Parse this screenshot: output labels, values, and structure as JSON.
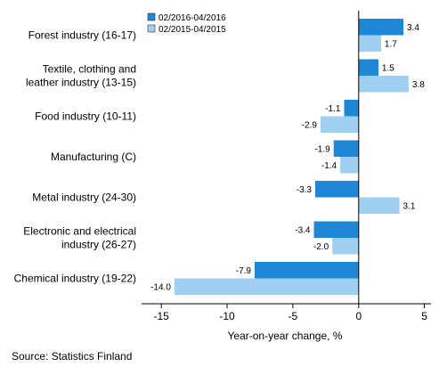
{
  "chart_data": {
    "type": "bar",
    "orientation": "horizontal",
    "categories": [
      [
        "Forest industry (16-17)"
      ],
      [
        "Textile, clothing and",
        "leather industry (13-15)"
      ],
      [
        "Food industry (10-11)"
      ],
      [
        "Manufacturing (C)"
      ],
      [
        "Metal industry (24-30)"
      ],
      [
        "Electronic and electrical",
        "industry (26-27)"
      ],
      [
        "Chemical industry (19-22)"
      ]
    ],
    "series": [
      {
        "name": "02/2016-04/2016",
        "color": "#1f88d6",
        "values": [
          3.4,
          1.5,
          -1.1,
          -1.9,
          -3.3,
          -3.4,
          -7.9
        ],
        "labels": [
          "3.4",
          "1.5",
          "-1.1",
          "-1.9",
          "-3.3",
          "-3.4",
          "-7.9"
        ]
      },
      {
        "name": "02/2015-04/2015",
        "color": "#9fd0f2",
        "values": [
          1.7,
          3.8,
          -2.9,
          -1.4,
          3.1,
          -2.0,
          -14.0
        ],
        "labels": [
          "1.7",
          "3.8",
          "-2.9",
          "-1.4",
          "3.1",
          "-2.0",
          "-14.0"
        ]
      }
    ],
    "xlim": [
      -16.5,
      5.5
    ],
    "xticks": [
      -15,
      -10,
      -5,
      0,
      5
    ],
    "xtick_labels": [
      "-15",
      "-10",
      "-5",
      "0",
      "5"
    ],
    "xlabel": "Year-on-year change, %",
    "legend_position": "top-left",
    "grid": false
  },
  "source": "Source: Statistics Finland"
}
